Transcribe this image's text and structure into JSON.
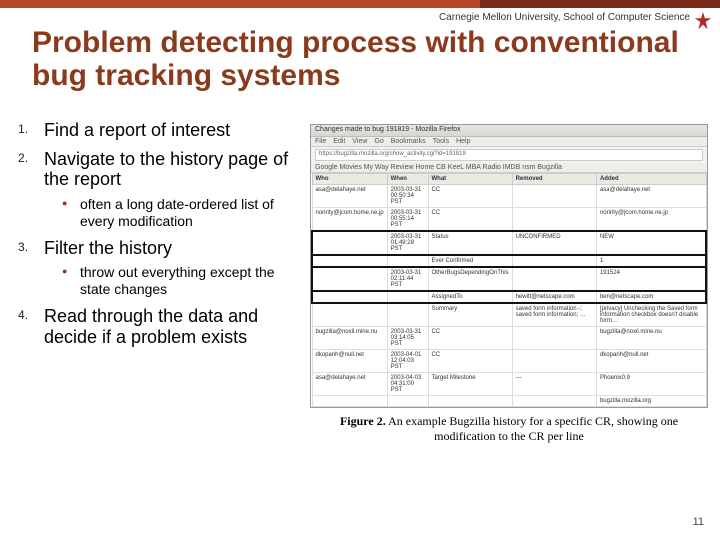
{
  "colors": {
    "accent": "#8b3a1e",
    "topbar": "#b8442a",
    "topbar_dark": "#7a2818"
  },
  "affiliation": "Carnegie Mellon University, School of Computer Science",
  "title": "Problem detecting process with conventional bug tracking systems",
  "steps": [
    {
      "text": "Find a report of interest",
      "sub": []
    },
    {
      "text": "Navigate to the history page of the report",
      "sub": [
        "often a long date-ordered list of every modification"
      ]
    },
    {
      "text": "Filter the history",
      "sub": [
        "throw out everything except the state changes"
      ]
    },
    {
      "text": "Read through the data and decide if a problem exists",
      "sub": []
    }
  ],
  "page_number": "11",
  "figure": {
    "caption_prefix": "Figure 2.",
    "caption": "An example Bugzilla history for a specific CR, showing one modification to the CR per line",
    "browser": {
      "window_title": "Changes made to bug 191819 - Mozilla Firefox",
      "menu": [
        "File",
        "Edit",
        "View",
        "Go",
        "Bookmarks",
        "Tools",
        "Help"
      ],
      "url": "https://bugzilla.mozilla.org/show_activity.cgi?id=191819",
      "toolbar": "Google  Movies  My Way  Review  Home  CB  KeeL  MBA  Radio  IMDB  nsm  Bugzilla"
    },
    "table": {
      "columns": [
        "Who",
        "When",
        "What",
        "Removed",
        "Added"
      ],
      "highlighted": [
        2,
        3,
        4,
        5
      ],
      "rows": [
        [
          "asa@delahaye.net",
          "2003-03-31 00:50:34 PST",
          "CC",
          "",
          "asa@delahaye.net"
        ],
        [
          "noririty@jcom.home.ne.jp",
          "2003-03-31 00:55:14 PST",
          "CC",
          "",
          "noririty@jcom.home.ne.jp"
        ],
        [
          "",
          "2003-03-31 01:49:28 PST",
          "Status",
          "UNCONFIRMED",
          "NEW"
        ],
        [
          "",
          "",
          "Ever Confirmed",
          "",
          "1"
        ],
        [
          "",
          "2003-03-31 02:11:44 PST",
          "OtherBugsDependingOnThis",
          "",
          "191524"
        ],
        [
          "",
          "",
          "AssignedTo",
          "hewitt@netscape.com",
          "ben@netscape.com"
        ],
        [
          "",
          "",
          "Summary",
          "saved form information -; saved form information; …",
          "[privacy] Unchecking the Saved form information checkbox doesn't disable form…"
        ],
        [
          "bugzilla@noxil.mine.nu",
          "2003-03-31 03:14:05 PST",
          "CC",
          "",
          "bugzilla@noxil.mine.nu"
        ],
        [
          "dkopanh@null.net",
          "2003-04-01 12:04:03 PST",
          "CC",
          "",
          "dkopanh@null.net"
        ],
        [
          "asa@delahaye.net",
          "2003-04-03 04:31:00 PST",
          "Target Milestone",
          "---",
          "Phoenix0.9"
        ],
        [
          "",
          "",
          "",
          "",
          "bugzilla.mozilla.org"
        ]
      ]
    }
  }
}
